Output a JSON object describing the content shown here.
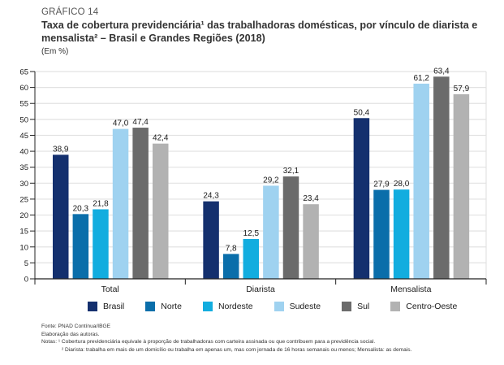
{
  "header": {
    "kicker": "GRÁFICO 14",
    "title": "Taxa de cobertura previdenciária¹ das trabalhadoras domésticas, por vínculo de diarista e mensalista² – Brasil e Grandes Regiões (2018)",
    "unit": "(Em %)"
  },
  "chart_data": {
    "type": "bar",
    "title": "Taxa de cobertura previdenciária¹ das trabalhadoras domésticas, por vínculo de diarista e mensalista² – Brasil e Grandes Regiões (2018)",
    "xlabel": "",
    "ylabel": "(Em %)",
    "ylim": [
      0,
      65
    ],
    "yticks": [
      0,
      5,
      10,
      15,
      20,
      25,
      30,
      35,
      40,
      45,
      50,
      55,
      60,
      65
    ],
    "grid": true,
    "legend_position": "bottom",
    "categories": [
      "Total",
      "Diarista",
      "Mensalista"
    ],
    "series": [
      {
        "name": "Brasil",
        "color": "#14306e",
        "values": [
          38.9,
          24.3,
          50.4
        ],
        "labels": [
          "38,9",
          "24,3",
          "50,4"
        ]
      },
      {
        "name": "Norte",
        "color": "#0a6eaa",
        "values": [
          20.3,
          7.8,
          27.9
        ],
        "labels": [
          "20,3",
          "7,8",
          "27,9"
        ]
      },
      {
        "name": "Nordeste",
        "color": "#12addf",
        "values": [
          21.8,
          12.5,
          28.0
        ],
        "labels": [
          "21,8",
          "12,5",
          "28,0"
        ]
      },
      {
        "name": "Sudeste",
        "color": "#9fd2f0",
        "values": [
          47.0,
          29.2,
          61.2
        ],
        "labels": [
          "47,0",
          "29,2",
          "61,2"
        ]
      },
      {
        "name": "Sul",
        "color": "#6b6b6b",
        "values": [
          47.4,
          32.1,
          63.4
        ],
        "labels": [
          "47,4",
          "32,1",
          "63,4"
        ]
      },
      {
        "name": "Centro-Oeste",
        "color": "#b2b2b2",
        "values": [
          42.4,
          23.4,
          57.9
        ],
        "labels": [
          "42,4",
          "23,4",
          "57,9"
        ]
      }
    ]
  },
  "footer": {
    "source": "Fonte: PNAD Contínua/IBGE",
    "elaboration": "Elaboração das autoras.",
    "note1": "Notas: ¹ Cobertura previdenciária equivale à proporção de trabalhadoras com carteira assinada ou que contribuem para a previdência social.",
    "note2": "² Diarista: trabalha em mais de um domicílio ou trabalha em apenas um, mas com jornada de 16 horas semanais ou menos; Mensalista: as demais."
  }
}
